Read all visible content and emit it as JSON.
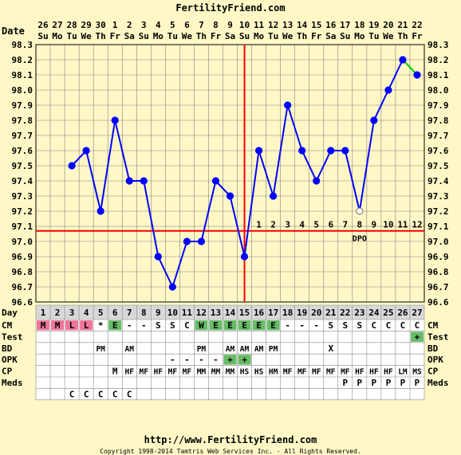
{
  "header": {
    "site": "FertilityFriend.com"
  },
  "footer": {
    "url": "http://www.FertilityFriend.com",
    "copyright": "Copyright 1998-2014 Tamtris Web Services Inc. - All Rights Reserved."
  },
  "chart_data": {
    "type": "line",
    "title": "",
    "xlabel": "Date",
    "ylabel": "",
    "ylim": [
      96.6,
      98.3
    ],
    "y_ticks": [
      "96.6",
      "96.7",
      "96.8",
      "96.9",
      "97.0",
      "97.1",
      "97.2",
      "97.3",
      "97.4",
      "97.5",
      "97.6",
      "97.7",
      "97.8",
      "97.9",
      "98.0",
      "98.1",
      "98.2",
      "98.3"
    ],
    "dates": [
      "26",
      "27",
      "28",
      "29",
      "30",
      "1",
      "2",
      "3",
      "4",
      "5",
      "6",
      "7",
      "8",
      "9",
      "10",
      "11",
      "12",
      "13",
      "14",
      "15",
      "16",
      "17",
      "18",
      "19",
      "20",
      "21",
      "22"
    ],
    "weekdays": [
      "Su",
      "Mo",
      "Tu",
      "We",
      "Th",
      "Fr",
      "Sa",
      "Su",
      "Mo",
      "Tu",
      "We",
      "Th",
      "Fr",
      "Sa",
      "Su",
      "Mo",
      "Tu",
      "We",
      "Th",
      "Fr",
      "Sa",
      "Su",
      "Mo",
      "Tu",
      "We",
      "Th",
      "Fr"
    ],
    "cycle_days": [
      "1",
      "2",
      "3",
      "4",
      "5",
      "6",
      "7",
      "8",
      "9",
      "10",
      "11",
      "12",
      "13",
      "14",
      "15",
      "16",
      "17",
      "18",
      "19",
      "20",
      "21",
      "22",
      "23",
      "24",
      "25",
      "26",
      "27"
    ],
    "series": [
      {
        "values": [
          null,
          null,
          97.5,
          97.6,
          97.2,
          97.8,
          97.4,
          97.4,
          96.9,
          96.7,
          97.0,
          97.0,
          97.4,
          97.3,
          96.9,
          97.6,
          97.3,
          97.9,
          97.6,
          97.4,
          97.6,
          97.6,
          97.2,
          97.8,
          98.0,
          98.2,
          98.1
        ]
      }
    ],
    "open_point_day": 23,
    "last_segment_color": "#00cc00",
    "coverline": 97.07,
    "ovulation_day": 15,
    "dpo_labels": [
      "1",
      "2",
      "3",
      "4",
      "5",
      "6",
      "7",
      "8",
      "9",
      "10",
      "11",
      "12"
    ],
    "dpo_text": "DPO",
    "colors": {
      "line": "#0000ff",
      "coverline": "#ff0000",
      "grid": "#808080",
      "fertile": "#66bb66",
      "menses": "#ee7799"
    },
    "rows": [
      {
        "label": "CM",
        "cells": [
          "M",
          "M",
          "L",
          "L",
          "*",
          "E",
          "-",
          "-",
          "S",
          "S",
          "C",
          "W",
          "E",
          "E",
          "E",
          "E",
          "E",
          "-",
          "-",
          "-",
          "S",
          "S",
          "S",
          "C",
          "C",
          "C",
          "C"
        ],
        "bg": [
          "pink",
          "pink",
          "pink",
          "pink",
          "",
          "green",
          "",
          "",
          "",
          "",
          "",
          "green",
          "green",
          "green",
          "green",
          "green",
          "green",
          "",
          "",
          "",
          "",
          "",
          "",
          "",
          "",
          "",
          ""
        ]
      },
      {
        "label": "Test",
        "cells": [
          "",
          "",
          "",
          "",
          "",
          "",
          "",
          "",
          "",
          "",
          "",
          "",
          "",
          "",
          "",
          "",
          "",
          "",
          "",
          "",
          "",
          "",
          "",
          "",
          "",
          "",
          "+"
        ],
        "bg": [
          "",
          "",
          "",
          "",
          "",
          "",
          "",
          "",
          "",
          "",
          "",
          "",
          "",
          "",
          "",
          "",
          "",
          "",
          "",
          "",
          "",
          "",
          "",
          "",
          "",
          "",
          "green"
        ]
      },
      {
        "label": "BD",
        "cells": [
          "",
          "",
          "",
          "",
          "PM",
          "",
          "AM",
          "",
          "",
          "",
          "",
          "PM",
          "",
          "AM",
          "AM",
          "AM",
          "PM",
          "",
          "",
          "",
          "X",
          "",
          "",
          "",
          "",
          "",
          ""
        ]
      },
      {
        "label": "OPK",
        "cells": [
          "",
          "",
          "",
          "",
          "",
          "",
          "",
          "",
          "",
          "-",
          "-",
          "-",
          "-",
          "+",
          "+",
          "",
          "",
          "",
          "",
          "",
          "",
          "",
          "",
          "",
          "",
          "",
          ""
        ],
        "bg": [
          "",
          "",
          "",
          "",
          "",
          "",
          "",
          "",
          "",
          "",
          "",
          "",
          "",
          "green",
          "green",
          "",
          "",
          "",
          "",
          "",
          "",
          "",
          "",
          "",
          "",
          "",
          ""
        ]
      },
      {
        "label": "CP",
        "cells": [
          "",
          "",
          "",
          "",
          "",
          "M",
          "HF",
          "MF",
          "HF",
          "MF",
          "MF",
          "MM",
          "MM",
          "MM",
          "HS",
          "HS",
          "HM",
          "MF",
          "MF",
          "MF",
          "MF",
          "MF",
          "HF",
          "HF",
          "HF",
          "LM",
          "MS"
        ]
      },
      {
        "label": "Meds",
        "cells": [
          "",
          "",
          "",
          "",
          "",
          "",
          "",
          "",
          "",
          "",
          "",
          "",
          "",
          "",
          "",
          "",
          "",
          "",
          "",
          "",
          "",
          "P",
          "P",
          "P",
          "P",
          "P",
          "P"
        ]
      },
      {
        "label": "",
        "cells": [
          "",
          "",
          "C",
          "C",
          "C",
          "C",
          "C",
          "",
          "",
          "",
          "",
          "",
          "",
          "",
          "",
          "",
          "",
          "",
          "",
          "",
          "",
          "",
          "",
          "",
          "",
          "",
          ""
        ]
      }
    ]
  }
}
